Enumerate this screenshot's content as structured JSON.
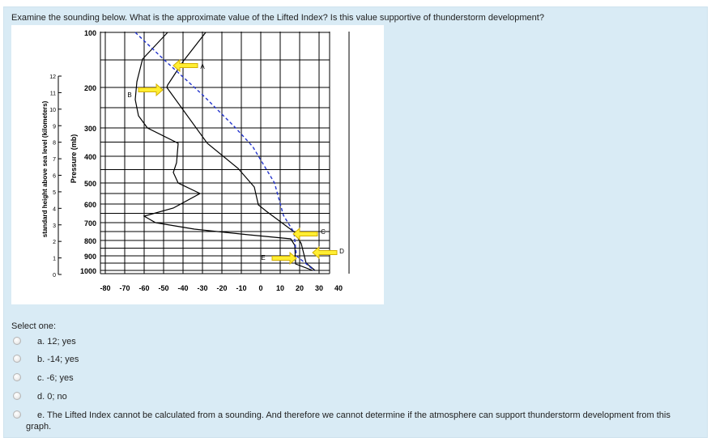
{
  "question": {
    "text": "Examine the sounding below. What is the approximate value of the Lifted Index? Is this value supportive of thunderstorm development?"
  },
  "figure": {
    "y_axis_km_label": "standard height above sea level (kilometers)",
    "y_axis_mb_label": "Pressure (mb)",
    "km_ticks": [
      "12",
      "11",
      "10",
      "9",
      "8",
      "7",
      "6",
      "5",
      "4",
      "3",
      "2",
      "1",
      "0"
    ],
    "mb_ticks": [
      "100",
      "200",
      "300",
      "400",
      "500",
      "600",
      "700",
      "800",
      "900",
      "1000"
    ],
    "temp_ticks": [
      "-80",
      "-70",
      "-60",
      "-50",
      "-40",
      "-30",
      "-20",
      "-10",
      "0",
      "10",
      "20",
      "30",
      "40"
    ],
    "arrow_labels": [
      "A",
      "B",
      "C",
      "D",
      "E"
    ],
    "colors": {
      "dashed_line": "#2233cc",
      "arrow_fill": "#ffee33",
      "arrow_stroke": "#d4b000",
      "grid": "#000000"
    }
  },
  "select": {
    "label": "Select one:",
    "options": [
      {
        "text": "a. 12; yes"
      },
      {
        "text": "b. -14; yes"
      },
      {
        "text": "c. -6; yes"
      },
      {
        "text": "d. 0; no"
      },
      {
        "text": "e. The Lifted Index cannot be calculated from a sounding. And therefore we cannot determine if the atmosphere can support thunderstorm development from this",
        "wrap": "graph."
      }
    ]
  }
}
